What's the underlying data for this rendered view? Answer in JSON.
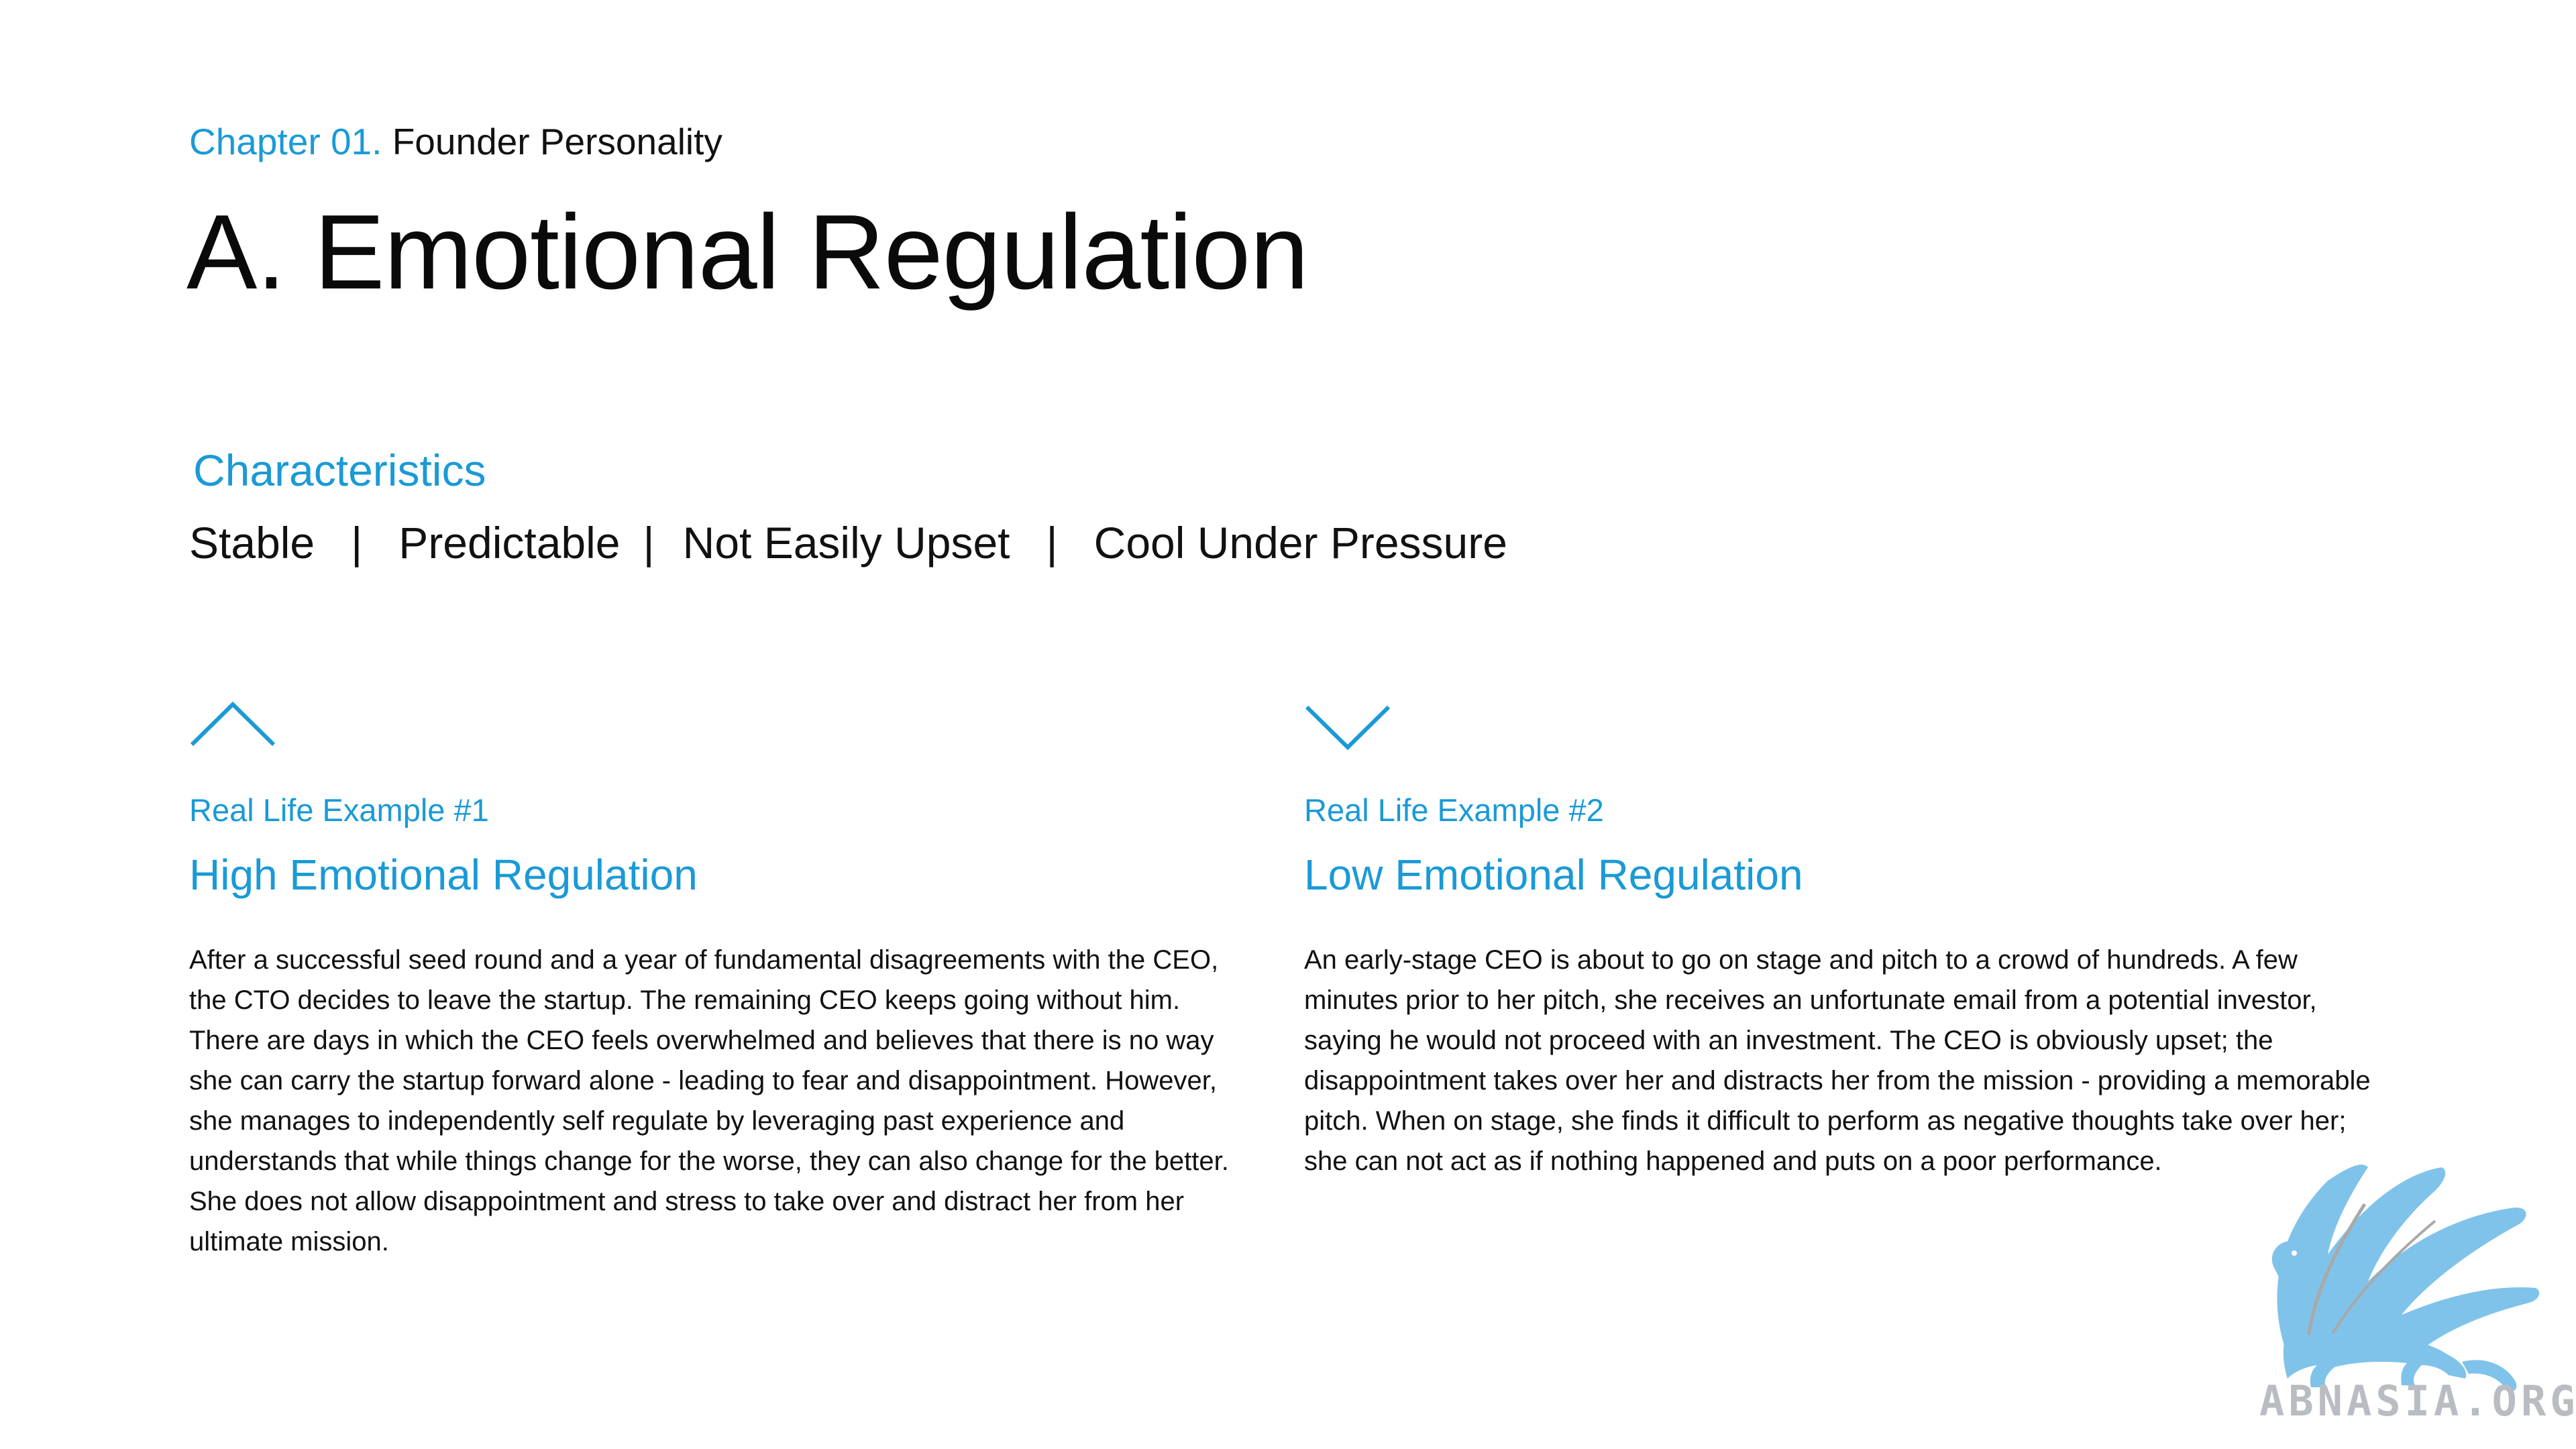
{
  "header": {
    "chapter_prefix": "Chapter 01.",
    "chapter_name": "Founder Personality",
    "title": "A. Emotional Regulation"
  },
  "characteristics": {
    "heading": "Characteristics",
    "items": [
      "Stable",
      "Predictable",
      "Not Easily Upset",
      "Cool Under Pressure"
    ],
    "separator": "|"
  },
  "examples": [
    {
      "icon": "chevron-up-icon",
      "label": "Real Life Example #1",
      "title": "High Emotional Regulation",
      "body": "After a successful seed round and a year of fundamental disagreements with the CEO, the CTO decides to leave the startup. The remaining CEO keeps going without him. There are days in which the CEO feels overwhelmed and believes that there is no way she can carry the startup forward alone - leading to fear and disappointment. However, she manages to independently self regulate by leveraging past experience and understands that while things change for the worse, they can also change for the better. She does not allow disappointment and stress to take over and distract her from her ultimate mission."
    },
    {
      "icon": "chevron-down-icon",
      "label": "Real Life Example #2",
      "title": "Low Emotional Regulation",
      "body": "An early-stage CEO is about to go on stage and pitch to a crowd of hundreds. A few minutes prior to her pitch, she receives an unfortunate email from a potential investor, saying he would not proceed with an investment. The CEO is obviously upset; the disappointment takes over her and distracts her from the mission - providing a memorable pitch. When on stage, she finds it difficult to perform as negative thoughts take over her; she can not act as if nothing happened and puts on a poor performance."
    }
  ],
  "watermark": {
    "icon": "griffin-logo-icon",
    "text": "ABNASIA.ORG"
  },
  "colors": {
    "accent": "#1a9ad6",
    "text": "#111111",
    "watermark_blue": "#7fc3ea",
    "watermark_gray": "#b9bdc2"
  }
}
